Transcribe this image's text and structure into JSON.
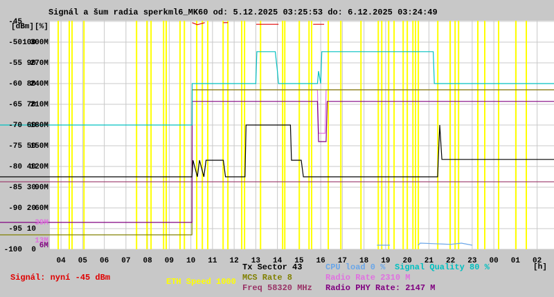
{
  "chart_data": {
    "type": "line",
    "title": "Signál a šum radia sperkml6_MK60 od: 5.12.2025 03:25:53 do: 6.12.2025 03:24:49",
    "x_unit_label": "[h]",
    "y_unit_label": "[dBm]",
    "y2_unit_label": "[%]",
    "xlim": [
      1.18,
      26.78
    ],
    "xticks": [
      {
        "value": 4,
        "label": "04"
      },
      {
        "value": 5,
        "label": "05"
      },
      {
        "value": 6,
        "label": "06"
      },
      {
        "value": 7,
        "label": "07"
      },
      {
        "value": 8,
        "label": "08"
      },
      {
        "value": 9,
        "label": "09"
      },
      10,
      11,
      12,
      13,
      14,
      15,
      16,
      17,
      18,
      19,
      20,
      21,
      22,
      23,
      {
        "value": 24,
        "label": "00"
      },
      {
        "value": 25,
        "label": "01"
      },
      {
        "value": 26,
        "label": "02"
      }
    ],
    "ylim": [
      -100,
      -45
    ],
    "yticks": [
      -45,
      -50,
      -55,
      -60,
      -65,
      -70,
      -75,
      -80,
      -85,
      -90,
      -95,
      -100
    ],
    "y2lim": [
      0,
      110
    ],
    "y2ticks": [
      100,
      90,
      80,
      70,
      60,
      50,
      40,
      30,
      20,
      10,
      0
    ],
    "y3lim": [
      0,
      330
    ],
    "y3ticks": [
      {
        "value": 300,
        "label": "300M"
      },
      {
        "value": 270,
        "label": "270M"
      },
      {
        "value": 240,
        "label": "240M"
      },
      {
        "value": 210,
        "label": "210M"
      },
      {
        "value": 180,
        "label": "180M"
      },
      {
        "value": 150,
        "label": "150M"
      },
      {
        "value": 120,
        "label": "120M"
      },
      {
        "value": 90,
        "label": "90M"
      },
      {
        "value": 60,
        "label": "60M"
      }
    ],
    "rate_marks": [
      {
        "value": 39,
        "label": "39M",
        "color": "#e070e0"
      },
      {
        "value": 13,
        "label": "13M",
        "color": "#e070e0"
      },
      {
        "value": 6,
        "label": "6M",
        "color": "#800080"
      }
    ],
    "grid": true,
    "eth": {
      "legend": "ETH Speed 1000",
      "color": "#ffff00",
      "x": [
        3.87,
        4.38,
        4.51,
        5.06,
        7.49,
        7.97,
        8.16,
        8.74,
        8.86,
        9.5,
        9.7,
        10.27,
        10.53,
        10.78,
        11.49,
        11.71,
        12.35,
        12.48,
        13.22,
        14.24,
        14.34,
        15.01,
        15.46,
        15.58,
        16.35,
        16.93,
        17.86,
        18.66,
        18.82,
        19.14,
        19.39,
        19.81,
        20.0,
        20.26,
        20.38,
        20.51,
        21.41,
        21.98,
        22.21,
        22.37,
        23.26,
        23.58,
        24.22,
        25.02,
        25.5
      ]
    },
    "series": [
      {
        "legend": "Signál: nyní -45 dBm",
        "color": "#e00000",
        "x": [
          10.06,
          10.3,
          10.64,
          10.65,
          11.5,
          11.71,
          11.72,
          13.02,
          14.05,
          14.06,
          15.65,
          16.16
        ],
        "values": [
          -45.3,
          -45.8,
          -45.3,
          null,
          -45.3,
          -45.3,
          null,
          -45.7,
          -45.7,
          null,
          -45.7,
          -45.7
        ]
      },
      {
        "legend": "Freq 58320 MHz",
        "color": "#993366",
        "x": [
          1.18,
          26.78
        ],
        "values": [
          -83.7,
          -83.7
        ]
      },
      {
        "legend": "Radio Rate 2310 M",
        "color": "#e070e0",
        "x": [
          10.06,
          15.85,
          15.9,
          16.2,
          16.25,
          26.78
        ],
        "values": [
          -61.5,
          -61.5,
          -72,
          -72,
          -61.5,
          -61.5
        ]
      },
      {
        "legend": "MCS Rate 8",
        "color": "#808000",
        "x": [
          1.18,
          10.05,
          10.06,
          26.78
        ],
        "values": [
          -96.5,
          -96.5,
          -61.5,
          -61.5
        ]
      },
      {
        "legend": "Radio PHY Rate: 2147 M",
        "color": "#800080",
        "x": [
          1.18,
          10.05,
          10.06,
          15.85,
          15.9,
          16.25,
          16.3,
          26.78
        ],
        "values": [
          -93.5,
          -93.5,
          -64.3,
          -64.3,
          -74,
          -74,
          -64.3,
          -64.3
        ]
      },
      {
        "legend": "Signal Quality 80 %",
        "color": "#00c0c0",
        "x": [
          1.18,
          10.05,
          10.06,
          13.0,
          13.05,
          13.9,
          14.0,
          14.05,
          15.85,
          15.9,
          16.0,
          16.05,
          21.2,
          21.25,
          26.78
        ],
        "values": [
          -70,
          -70,
          -60,
          -60,
          -52.3,
          -52.3,
          -57,
          -60,
          -60,
          -57,
          -60,
          -52.3,
          -52.3,
          -60,
          -60
        ]
      },
      {
        "legend": "Tx Sector 43",
        "color": "#000000",
        "x": [
          1.18,
          10.05,
          10.1,
          10.3,
          10.4,
          10.6,
          10.7,
          11.5,
          11.6,
          12.5,
          12.55,
          14.6,
          14.65,
          15.1,
          15.2,
          21.4,
          21.5,
          21.6,
          26.78
        ],
        "values": [
          -82.5,
          -82.5,
          -78.5,
          -82.5,
          -78.5,
          -82.5,
          -78.5,
          -78.5,
          -82.5,
          -82.5,
          -70,
          -70,
          -78.5,
          -78.5,
          -82.5,
          -82.5,
          -70,
          -78.3,
          -78.3
        ]
      },
      {
        "legend": "CPU load 0 %",
        "color": "#6aa6e8",
        "x": [
          18.6,
          19.2,
          19.25,
          20.5,
          20.6,
          22.0,
          22.5,
          23.0
        ],
        "values": [
          -99,
          -99,
          null,
          -99,
          -98.5,
          -98.8,
          -98.5,
          -99
        ]
      }
    ]
  }
}
